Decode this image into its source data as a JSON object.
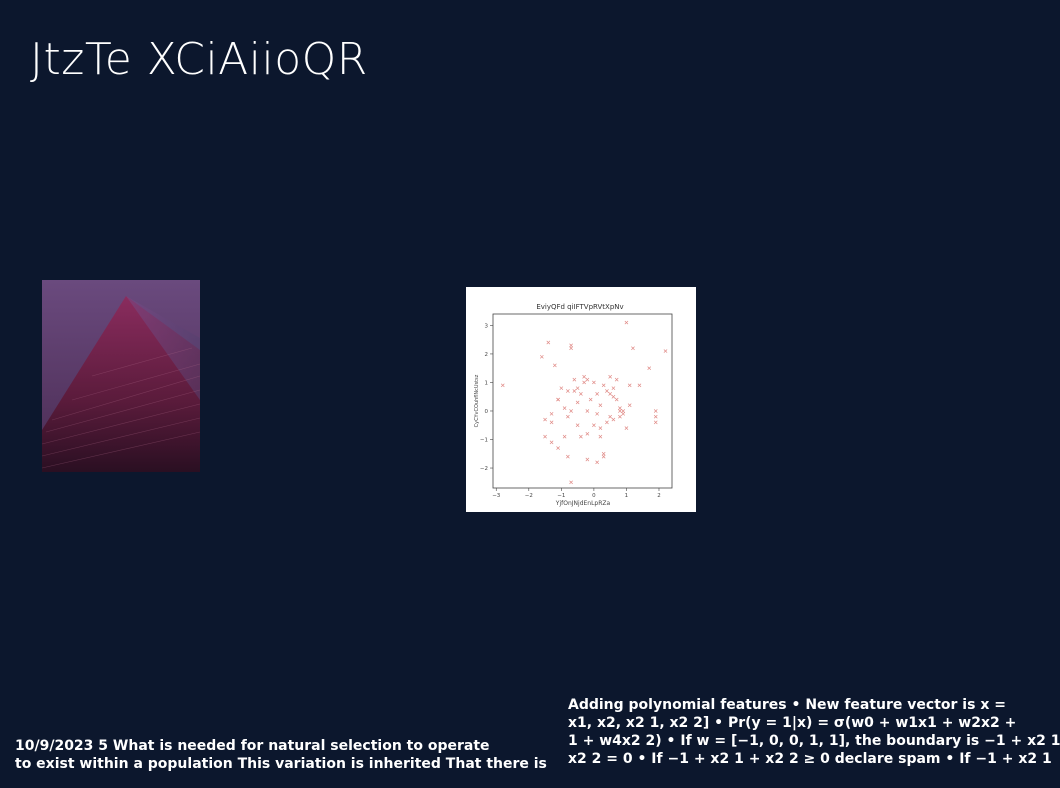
{
  "slide": {
    "title": "JtzTe XCiAiioQR"
  },
  "photo": {
    "description_icon": "pyramid-photo"
  },
  "chart_data": {
    "type": "scatter",
    "title": "EviyQFd qiIFTVpRVtXpNv",
    "xlabel": "YjfOnJNjdEnLpRZa",
    "ylabel": "CyCYvCOuhflNcUstsz",
    "xlim": [
      -3.1,
      2.4
    ],
    "ylim": [
      -2.7,
      3.4
    ],
    "xticks": [
      -3,
      -2,
      -1,
      0,
      1,
      2
    ],
    "yticks": [
      -2,
      -1,
      0,
      1,
      2,
      3
    ],
    "marker": "x",
    "color": "#e08a86",
    "grid": false,
    "x": [
      -2.8,
      -1.6,
      -1.4,
      -1.2,
      -1.1,
      -1.1,
      -0.9,
      -0.8,
      -0.7,
      -0.7,
      -0.6,
      -0.5,
      -0.4,
      -0.3,
      -0.2,
      -0.1,
      0.0,
      0.1,
      0.2,
      0.3,
      0.4,
      0.5,
      0.6,
      0.7,
      0.8,
      0.9,
      1.0,
      1.1,
      1.2,
      1.4,
      1.7,
      1.9,
      2.2,
      -1.5,
      -1.3,
      -1.0,
      -0.8,
      -0.6,
      -0.5,
      -0.3,
      -0.2,
      0.0,
      0.1,
      0.2,
      0.4,
      0.5,
      0.7,
      0.8,
      1.0,
      1.1,
      1.9,
      -1.3,
      -1.1,
      -0.9,
      -0.7,
      -0.4,
      -0.2,
      0.1,
      0.3,
      0.6,
      0.9,
      1.9,
      -1.5,
      -0.8,
      -0.5,
      0.2,
      0.5,
      -0.7,
      -0.2,
      0.3,
      0.6,
      0.8,
      -1.3
    ],
    "y": [
      0.9,
      1.9,
      2.4,
      1.6,
      -1.3,
      0.4,
      0.1,
      0.7,
      2.3,
      2.2,
      1.1,
      0.8,
      0.6,
      1.0,
      1.1,
      0.4,
      1.0,
      0.6,
      0.2,
      0.9,
      0.7,
      1.2,
      0.8,
      1.1,
      0.1,
      0.0,
      3.1,
      0.9,
      2.2,
      0.9,
      1.5,
      0.0,
      2.1,
      -0.3,
      -0.4,
      0.8,
      -0.2,
      0.7,
      0.3,
      1.2,
      0.0,
      -0.5,
      -0.1,
      -0.6,
      -0.4,
      0.6,
      0.4,
      0.0,
      -0.6,
      0.2,
      -0.4,
      -1.1,
      0.4,
      -0.9,
      0.0,
      -0.9,
      -1.7,
      -1.8,
      -1.5,
      -0.3,
      -0.1,
      -0.2,
      -0.9,
      -1.6,
      -0.5,
      -0.9,
      -0.2,
      -2.5,
      -0.8,
      -1.6,
      0.5,
      -0.2,
      -0.1
    ]
  },
  "footer": {
    "left_lines": [
      "10/9/2023 5 What is needed for natural selection to operate",
      "to exist within a population This variation is inherited That there is"
    ],
    "right_lines": [
      "Adding polynomial features • New feature vector is x =",
      "x1, x2, x2 1, x2 2] • Pr(y = 1|x) = σ(w0 + w1x1 + w2x2 +",
      "1 + w4x2 2) • If w = [−1, 0, 0, 1, 1], the boundary is −1 + x2 1",
      "x2 2 = 0 • If −1 + x2 1 + x2 2 ≥ 0 declare spam • If −1 + x2 1"
    ]
  }
}
